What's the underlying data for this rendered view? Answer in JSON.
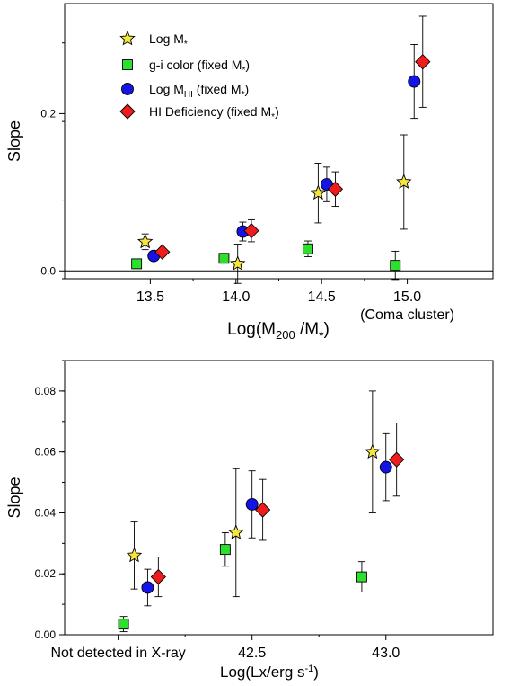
{
  "colors": {
    "star": "#f5e63c",
    "square": "#2ee02e",
    "circle": "#1414e6",
    "diamond": "#ee1c1c",
    "error": "#000000"
  },
  "chart_data": [
    {
      "type": "scatter",
      "xlabel": "Log(M",
      "xlabel_sub": "200",
      "xlabel_mid": " /M",
      "xlabel_sub2": "*",
      "xlabel_end": ")",
      "ylabel": "Slope",
      "xlim": [
        13.0,
        15.5
      ],
      "ylim": [
        -0.01,
        0.34
      ],
      "x_ticks": [
        {
          "value": 13.5,
          "label": "13.5"
        },
        {
          "value": 14.0,
          "label": "14.0"
        },
        {
          "value": 14.5,
          "label": "14.5"
        },
        {
          "value": 15.0,
          "label": "15.0"
        }
      ],
      "x_extra_label": "(Coma cluster)",
      "y_ticks": [
        {
          "value": 0.0,
          "label": "0.0"
        },
        {
          "value": 0.2,
          "label": "0.2"
        }
      ],
      "zero_line": true,
      "legend": [
        {
          "marker": "star",
          "label": "Log M",
          "sub": "*",
          "suffix": ""
        },
        {
          "marker": "square",
          "label": "g-i color (fixed M",
          "sub": "*",
          "suffix": ")"
        },
        {
          "marker": "circle",
          "label": "Log M",
          "sub": "HI",
          "suffix": " (fixed M",
          "sub2": "*",
          "suffix2": ")"
        },
        {
          "marker": "diamond",
          "label": "HI Deficiency (fixed M",
          "sub": "*",
          "suffix": ")"
        }
      ],
      "series": [
        {
          "marker": "star",
          "x": [
            13.47,
            14.01,
            14.48,
            14.98
          ],
          "y": [
            0.037,
            0.009,
            0.099,
            0.113
          ],
          "err": [
            0.01,
            0.025,
            0.038,
            0.06
          ]
        },
        {
          "marker": "square",
          "x": [
            13.42,
            13.93,
            14.42,
            14.93
          ],
          "y": [
            0.009,
            0.016,
            0.028,
            0.007
          ],
          "err": [
            0.006,
            0.004,
            0.01,
            0.018
          ]
        },
        {
          "marker": "circle",
          "x": [
            13.52,
            14.04,
            14.53,
            15.04
          ],
          "y": [
            0.019,
            0.05,
            0.11,
            0.241
          ],
          "err": [
            0.0,
            0.012,
            0.022,
            0.047
          ]
        },
        {
          "marker": "diamond",
          "x": [
            13.57,
            14.09,
            14.58,
            15.09
          ],
          "y": [
            0.024,
            0.051,
            0.104,
            0.266
          ],
          "err": [
            0.0,
            0.014,
            0.022,
            0.058
          ]
        }
      ]
    },
    {
      "type": "scatter",
      "xlabel": "Log(Lx/erg s",
      "xlabel_sup": "-1",
      "xlabel_end": ")",
      "ylabel": "Slope",
      "xlim": [
        41.8,
        43.4
      ],
      "ylim": [
        0.0,
        0.09
      ],
      "x_ticks": [
        {
          "value": 42.0,
          "label": "Not detected in X-ray"
        },
        {
          "value": 42.5,
          "label": "42.5"
        },
        {
          "value": 43.0,
          "label": "43.0"
        }
      ],
      "y_ticks": [
        {
          "value": 0.0,
          "label": "0.00"
        },
        {
          "value": 0.02,
          "label": "0.02"
        },
        {
          "value": 0.04,
          "label": "0.04"
        },
        {
          "value": 0.06,
          "label": "0.06"
        },
        {
          "value": 0.08,
          "label": "0.08"
        }
      ],
      "series": [
        {
          "marker": "star",
          "x": [
            42.06,
            42.44,
            42.95
          ],
          "y": [
            0.026,
            0.0335,
            0.06
          ],
          "err": [
            0.011,
            0.021,
            0.02
          ]
        },
        {
          "marker": "square",
          "x": [
            42.02,
            42.4,
            42.91
          ],
          "y": [
            0.0035,
            0.028,
            0.019
          ],
          "err": [
            0.0025,
            0.0055,
            0.005
          ]
        },
        {
          "marker": "circle",
          "x": [
            42.11,
            42.5,
            43.0
          ],
          "y": [
            0.0155,
            0.0428,
            0.055
          ],
          "err": [
            0.006,
            0.011,
            0.011
          ]
        },
        {
          "marker": "diamond",
          "x": [
            42.15,
            42.54,
            43.04
          ],
          "y": [
            0.019,
            0.041,
            0.0575
          ],
          "err": [
            0.0065,
            0.01,
            0.012
          ]
        }
      ]
    }
  ]
}
